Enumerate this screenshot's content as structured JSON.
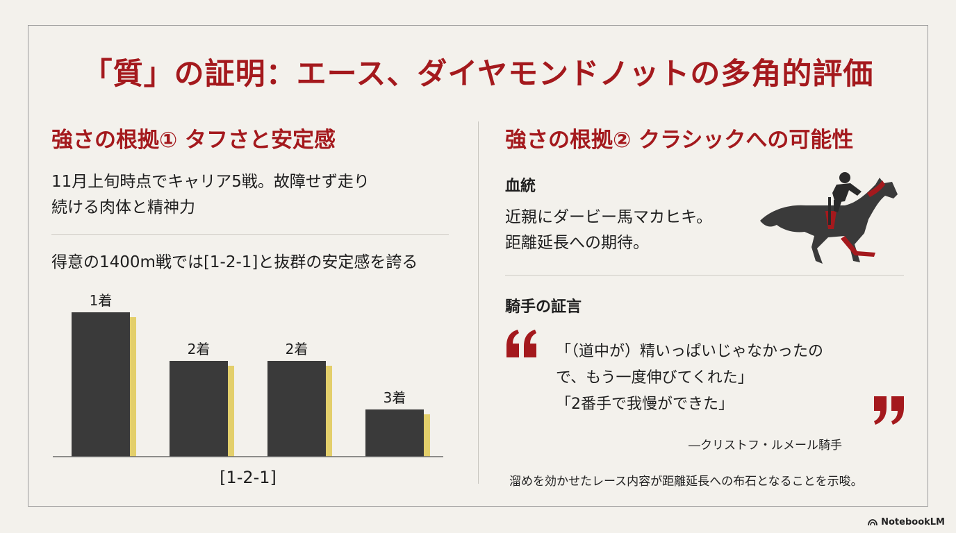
{
  "title": "「質」の証明：エース、ダイヤモンドノットの多角的評価",
  "left": {
    "heading": "強さの根拠① タフさと安定感",
    "para_lines": [
      "11月上旬時点でキャリア5戦。故障せず走り",
      "続ける肉体と精神力"
    ],
    "chart_caption": "得意の1400m戦では[1-2-1]と抜群の安定感を誇る"
  },
  "chart_data": {
    "type": "bar",
    "categories": [
      "1着",
      "2着",
      "2着",
      "3着"
    ],
    "values": [
      1,
      2,
      2,
      3
    ],
    "data_labels": [
      "1着",
      "2着",
      "2着",
      "3着"
    ],
    "xlabel": "[1-2-1]",
    "ylabel": "",
    "y_inverted": true,
    "colors": {
      "bar": "#3a3a3a",
      "accent": "#e3cf6b",
      "axis": "#6a6a6a"
    }
  },
  "right": {
    "heading": "強さの根拠② クラシックへの可能性",
    "bloodline_label": "血統",
    "bloodline_lines": [
      "近親にダービー馬マカヒキ。",
      "距離延長への期待。"
    ],
    "horse_icon": "racehorse-jockey-icon",
    "jockey_label": "騎手の証言",
    "quote_lines": [
      "「（道中が）精いっぱいじゃなかったの",
      "で、もう一度伸びてくれた」",
      "「2番手で我慢ができた」"
    ],
    "attribution": "―クリストフ・ルメール騎手",
    "note": "溜めを効かせたレース内容が距離延長への布石となることを示唆。"
  },
  "colors": {
    "accent": "#a4191d",
    "background": "#f3f1ec",
    "text": "#1e1e1e"
  },
  "brand": {
    "label": "NotebookLM"
  }
}
